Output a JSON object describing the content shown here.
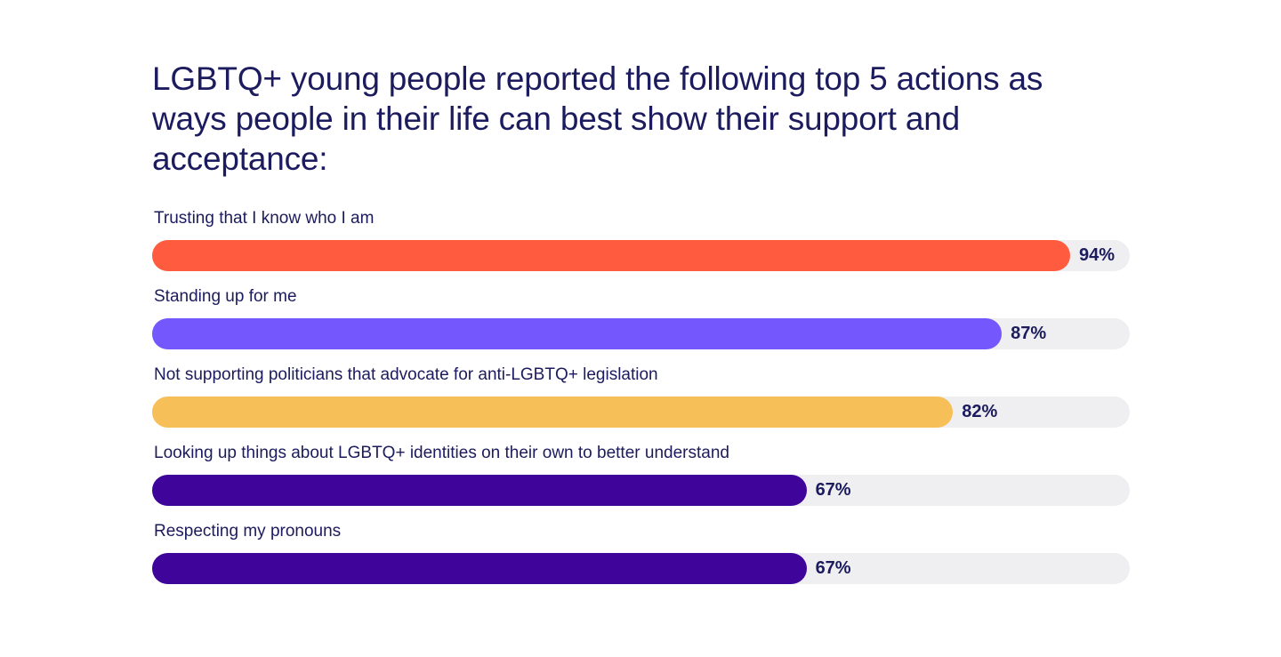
{
  "chart_data": {
    "type": "bar",
    "orientation": "horizontal",
    "title": "LGBTQ+ young people reported the following top 5 actions as ways people in their life can best show their support and acceptance:",
    "categories": [
      "Trusting that I know who I am",
      "Standing up for me",
      "Not supporting politicians that advocate for anti-LGBTQ+ legislation",
      "Looking up things about LGBTQ+ identities on their own to better understand",
      "Respecting my pronouns"
    ],
    "values": [
      94,
      87,
      82,
      67,
      67
    ],
    "value_labels": [
      "94%",
      "87%",
      "82%",
      "67%",
      "67%"
    ],
    "xlim": [
      0,
      100
    ],
    "colors": [
      "#ff5c3f",
      "#7558fd",
      "#f7bf57",
      "#3f0499",
      "#3f0499"
    ],
    "track_color": "#efeff1",
    "grid": false,
    "legend": "none"
  }
}
